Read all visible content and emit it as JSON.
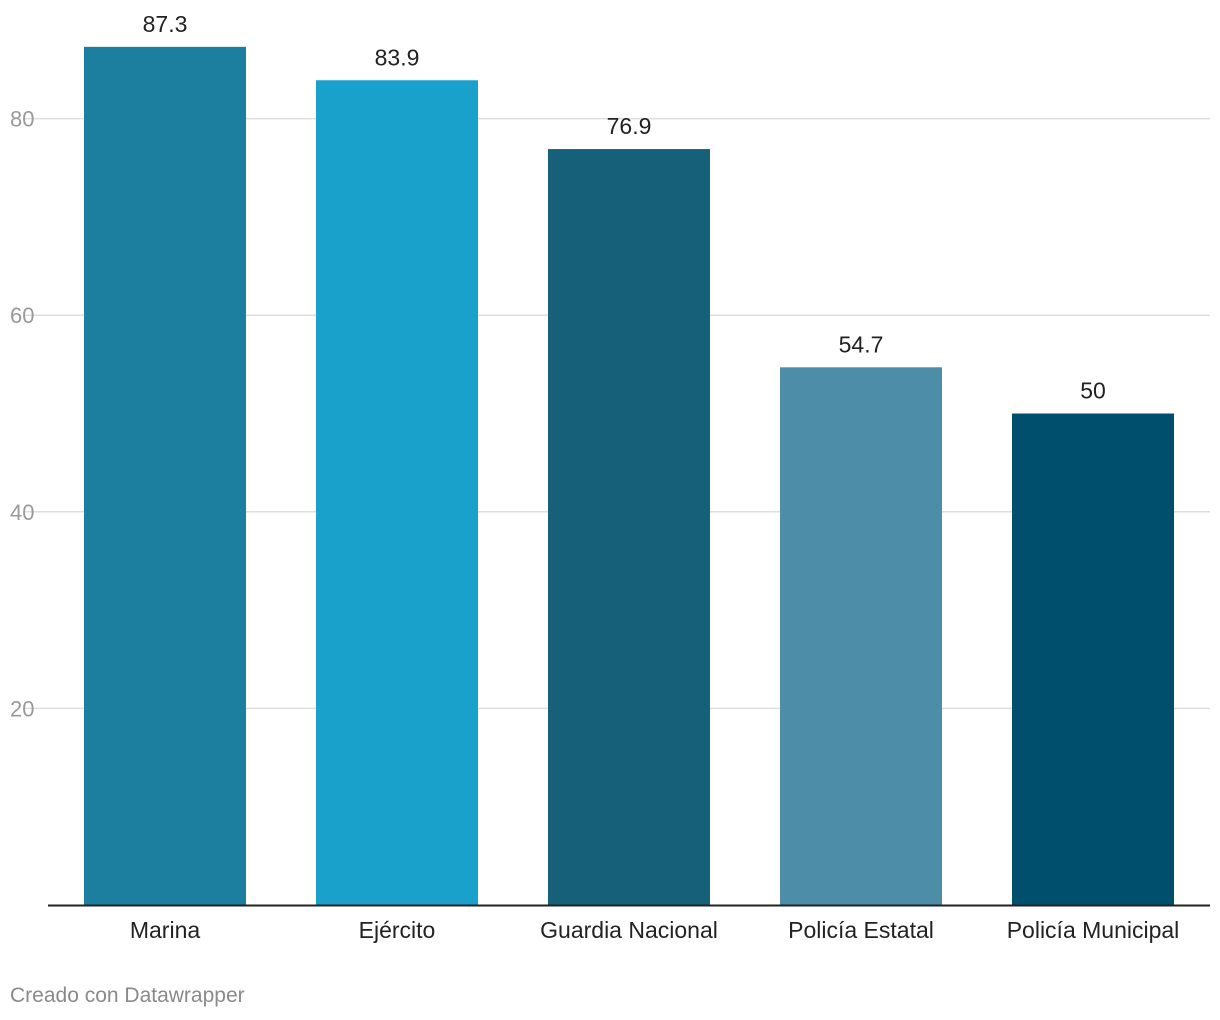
{
  "chart_data": {
    "type": "bar",
    "categories": [
      "Marina",
      "Ejército",
      "Guardia Nacional",
      "Policía Estatal",
      "Policía Municipal"
    ],
    "values": [
      87.3,
      83.9,
      76.9,
      54.7,
      50
    ],
    "value_labels": [
      "87.3",
      "83.9",
      "76.9",
      "54.7",
      "50"
    ],
    "bar_colors": [
      "#1d7fa0",
      "#19a1cc",
      "#16607a",
      "#4e8da8",
      "#00506d"
    ],
    "yticks": [
      20,
      40,
      60,
      80
    ],
    "ylim": [
      0,
      90
    ],
    "grid": true,
    "legend": "none",
    "title": "",
    "xlabel": "",
    "ylabel": ""
  },
  "footer": {
    "credit": "Creado con Datawrapper"
  }
}
